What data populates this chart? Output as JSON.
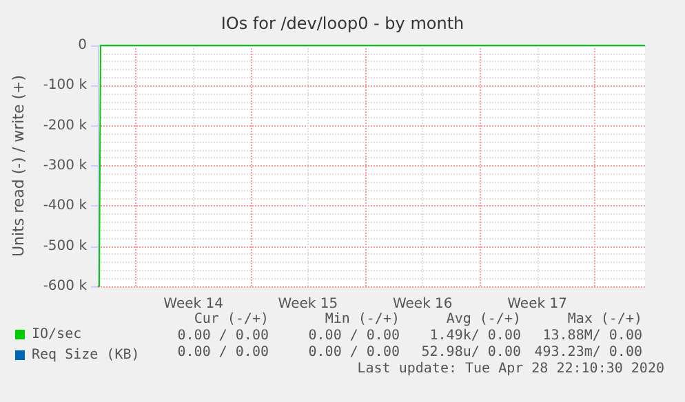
{
  "chart_data": {
    "type": "line",
    "title": "IOs for /dev/loop0 - by month",
    "ylabel": "Units read (-) / write (+)",
    "x": [
      "2020-03-27T16:00",
      "2020-03-27T18:00",
      "2020-03-27T20:00",
      "2020-04-30T02:00"
    ],
    "series": [
      {
        "name": "IO/sec",
        "color": "#00cc00",
        "values": [
          -600000,
          -600000,
          0,
          0
        ]
      },
      {
        "name": "Req Size (KB)",
        "color": "#0066b3",
        "values": [
          null,
          null,
          null,
          null
        ]
      }
    ],
    "xlim": [
      "2020-03-27T16:00",
      "2020-04-30T02:00"
    ],
    "xticks": [
      {
        "value": "2020-03-30",
        "label": null
      },
      {
        "value": "2020-04-02T12:00",
        "label": "Week 14"
      },
      {
        "value": "2020-04-06",
        "label": null
      },
      {
        "value": "2020-04-09T12:00",
        "label": "Week 15"
      },
      {
        "value": "2020-04-13",
        "label": null
      },
      {
        "value": "2020-04-16T12:00",
        "label": "Week 16"
      },
      {
        "value": "2020-04-20",
        "label": null
      },
      {
        "value": "2020-04-23T12:00",
        "label": "Week 17"
      },
      {
        "value": "2020-04-27",
        "label": null
      }
    ],
    "ylim": [
      -600000,
      0
    ],
    "yticks": [
      {
        "value": -600000,
        "label": "-600 k"
      },
      {
        "value": -500000,
        "label": "-500 k"
      },
      {
        "value": -400000,
        "label": "-400 k"
      },
      {
        "value": -300000,
        "label": "-300 k"
      },
      {
        "value": -200000,
        "label": "-200 k"
      },
      {
        "value": -100000,
        "label": "-100 k"
      },
      0
    ],
    "grid": true,
    "legend": "bottom left",
    "marker": "none",
    "line_style": "solid",
    "annotations": [
      "Cur (-/+)",
      "Min (-/+)",
      "Avg (-/+)",
      "Max (-/+)",
      "0.00 / 0.00",
      "0.00 / 0.00",
      "1.49k/ 0.00",
      "13.88M/ 0.00",
      "0.00 / 0.00",
      "0.00 / 0.00",
      "52.98u/ 0.00",
      "493.23m/ 0.00",
      "Last update: Tue Apr 28 22:10:30 2020"
    ]
  }
}
